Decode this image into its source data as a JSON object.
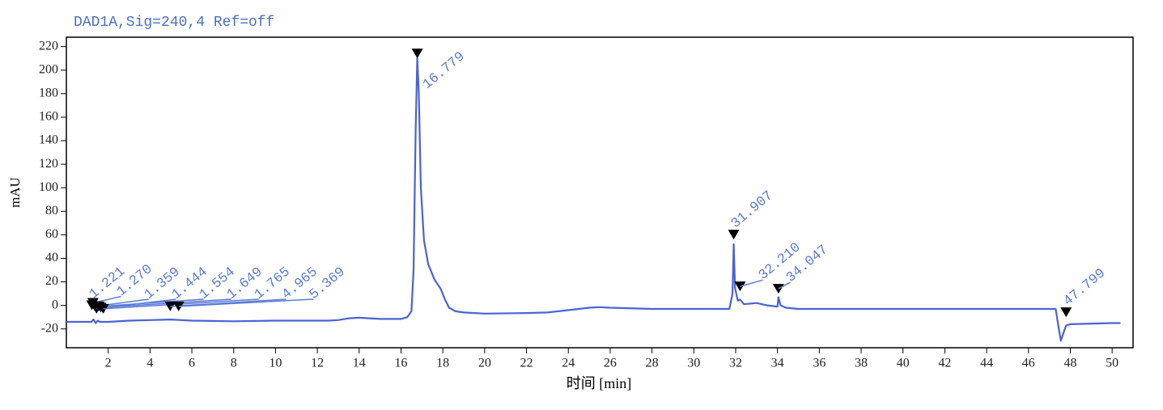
{
  "chart_data": {
    "type": "line",
    "title": "DAD1A,Sig=240,4  Ref=off",
    "xlabel": "时间 [min]",
    "ylabel": "mAU",
    "xlim": [
      0,
      51
    ],
    "ylim": [
      -36,
      228
    ],
    "xticks": [
      2,
      4,
      6,
      8,
      10,
      12,
      14,
      16,
      18,
      20,
      22,
      24,
      26,
      28,
      30,
      32,
      34,
      36,
      38,
      40,
      42,
      44,
      46,
      48,
      50
    ],
    "yticks": [
      -20,
      0,
      20,
      40,
      60,
      80,
      100,
      120,
      140,
      160,
      180,
      200,
      220
    ],
    "x": [
      0,
      1.0,
      1.2,
      1.3,
      1.4,
      1.5,
      1.6,
      1.8,
      2,
      3,
      4,
      5,
      5.5,
      6,
      8,
      10,
      12,
      12.5,
      13,
      13.5,
      14,
      15,
      16,
      16.3,
      16.5,
      16.6,
      16.7,
      16.779,
      16.85,
      16.95,
      17.1,
      17.3,
      17.6,
      17.9,
      18.1,
      18.3,
      18.6,
      19,
      20,
      22,
      23,
      24,
      25,
      25.5,
      26,
      28,
      30,
      31.7,
      31.85,
      31.907,
      31.97,
      32.1,
      32.21,
      32.4,
      33,
      33.5,
      34,
      34.047,
      34.15,
      34.4,
      35,
      40,
      46,
      47.3,
      47.45,
      47.55,
      47.7,
      47.799,
      48,
      50,
      50.4
    ],
    "series": [
      {
        "name": "DAD1A",
        "color": "#4a63d2",
        "values": [
          -14,
          -14,
          -14,
          -12,
          -15,
          -13,
          -14,
          -14,
          -14,
          -13,
          -12.5,
          -12,
          -12.5,
          -13,
          -13.5,
          -13,
          -13,
          -13,
          -12.5,
          -11,
          -10.5,
          -11.5,
          -11.5,
          -10,
          -5,
          30,
          150,
          210,
          180,
          100,
          55,
          35,
          22,
          14,
          5,
          -2,
          -5,
          -6,
          -7,
          -6.5,
          -6,
          -4,
          -2,
          -1.5,
          -2,
          -3,
          -3,
          -3,
          10,
          52,
          15,
          4,
          5,
          1,
          2,
          0,
          -1,
          7,
          0,
          -2,
          -3,
          -3,
          -3,
          -3,
          -20,
          -30,
          -22,
          -17,
          -16,
          -15,
          -15
        ]
      }
    ],
    "peaks": {
      "x": [
        1.221,
        1.27,
        1.359,
        1.444,
        1.554,
        1.649,
        1.765,
        4.965,
        5.369,
        16.779,
        31.907,
        32.21,
        34.047,
        47.799
      ],
      "y": [
        -4,
        -2,
        -5,
        -7,
        -5,
        -6,
        -7,
        -5,
        -5,
        210,
        56,
        12,
        10,
        -10
      ],
      "value_labels": [
        "1.221",
        "1.270",
        "1.359",
        "1.444",
        "1.554",
        "1.649",
        "1.765",
        "4.965",
        "5.369",
        "16.779",
        "31.907",
        "32.210",
        "34.047",
        "47.799"
      ]
    }
  }
}
